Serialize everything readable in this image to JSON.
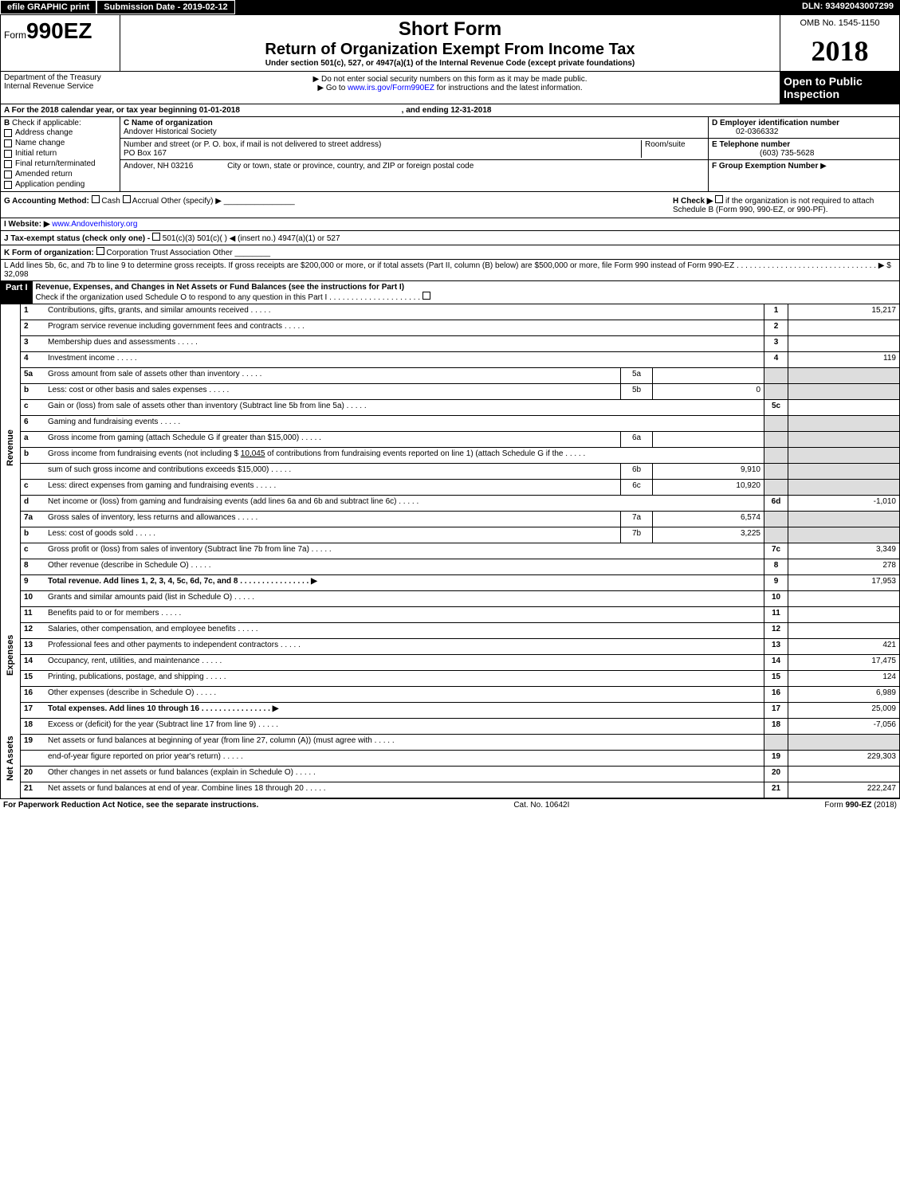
{
  "topbar": {
    "efile": "efile GRAPHIC print",
    "submission": "Submission Date - 2019-02-12",
    "dln": "DLN: 93492043007299"
  },
  "header": {
    "form_prefix": "Form",
    "form_number": "990EZ",
    "omb": "OMB No. 1545-1150",
    "short_form": "Short Form",
    "title": "Return of Organization Exempt From Income Tax",
    "subtitle": "Under section 501(c), 527, or 4947(a)(1) of the Internal Revenue Code (except private foundations)",
    "year": "2018",
    "open_public": "Open to Public Inspection",
    "dept": "Department of the Treasury",
    "irs": "Internal Revenue Service",
    "note1": "Do not enter social security numbers on this form as it may be made public.",
    "note2": "Go to www.irs.gov/Form990EZ for instructions and the latest information."
  },
  "row_a": {
    "text_start": "For the 2018 calendar year, or tax year beginning 01-01-2018",
    "text_end": ", and ending 12-31-2018"
  },
  "section_b": {
    "label": "Check if applicable:",
    "checks": [
      "Address change",
      "Name change",
      "Initial return",
      "Final return/terminated",
      "Amended return",
      "Application pending"
    ],
    "c_label": "C Name of organization",
    "c_value": "Andover Historical Society",
    "addr_label": "Number and street (or P. O. box, if mail is not delivered to street address)",
    "room_label": "Room/suite",
    "addr_value": "PO Box 167",
    "city_label": "City or town, state or province, country, and ZIP or foreign postal code",
    "city_value": "Andover, NH  03216",
    "d_label": "D Employer identification number",
    "d_value": "02-0366332",
    "e_label": "E Telephone number",
    "e_value": "(603) 735-5628",
    "f_label": "F Group Exemption Number",
    "f_arrow": "▶"
  },
  "row_g": {
    "g_label": "G Accounting Method:",
    "g_cash": "Cash",
    "g_accrual": "Accrual",
    "g_other": "Other (specify) ▶",
    "h_label": "H  Check ▶",
    "h_text": "if the organization is not required to attach Schedule B (Form 990, 990-EZ, or 990-PF)."
  },
  "row_i": {
    "label": "I Website: ▶",
    "value": "www.Andoverhistory.org"
  },
  "row_j": {
    "label": "J Tax-exempt status (check only one) -",
    "opts": "501(c)(3)    501(c)(  ) ◀ (insert no.)    4947(a)(1) or    527"
  },
  "row_k": {
    "label": "K Form of organization:",
    "opts": "Corporation    Trust    Association    Other"
  },
  "row_l": {
    "text": "L Add lines 5b, 6c, and 7b to line 9 to determine gross receipts. If gross receipts are $200,000 or more, or if total assets (Part II, column (B) below) are $500,000 or more, file Form 990 instead of Form 990-EZ",
    "amount": "▶ $ 32,098"
  },
  "part1": {
    "label": "Part I",
    "title": "Revenue, Expenses, and Changes in Net Assets or Fund Balances (see the instructions for Part I)",
    "check": "Check if the organization used Schedule O to respond to any question in this Part I"
  },
  "sections": {
    "revenue": "Revenue",
    "expenses": "Expenses",
    "netassets": "Net Assets"
  },
  "lines": [
    {
      "n": "1",
      "d": "Contributions, gifts, grants, and similar amounts received",
      "num": "1",
      "v": "15,217"
    },
    {
      "n": "2",
      "d": "Program service revenue including government fees and contracts",
      "num": "2",
      "v": ""
    },
    {
      "n": "3",
      "d": "Membership dues and assessments",
      "num": "3",
      "v": ""
    },
    {
      "n": "4",
      "d": "Investment income",
      "num": "4",
      "v": "119"
    },
    {
      "n": "5a",
      "d": "Gross amount from sale of assets other than inventory",
      "sub": "5a",
      "sv": ""
    },
    {
      "n": "b",
      "d": "Less: cost or other basis and sales expenses",
      "sub": "5b",
      "sv": "0"
    },
    {
      "n": "c",
      "d": "Gain or (loss) from sale of assets other than inventory (Subtract line 5b from line 5a)",
      "num": "5c",
      "v": ""
    },
    {
      "n": "6",
      "d": "Gaming and fundraising events"
    },
    {
      "n": "a",
      "d": "Gross income from gaming (attach Schedule G if greater than $15,000)",
      "sub": "6a",
      "sv": ""
    },
    {
      "n": "b",
      "d": "Gross income from fundraising events (not including $ ",
      "fill": "10,045",
      "d2": " of contributions from fundraising events reported on line 1) (attach Schedule G if the"
    },
    {
      "n": "",
      "d": "sum of such gross income and contributions exceeds $15,000)",
      "sub": "6b",
      "sv": "9,910"
    },
    {
      "n": "c",
      "d": "Less: direct expenses from gaming and fundraising events",
      "sub": "6c",
      "sv": "10,920"
    },
    {
      "n": "d",
      "d": "Net income or (loss) from gaming and fundraising events (add lines 6a and 6b and subtract line 6c)",
      "num": "6d",
      "v": "-1,010"
    },
    {
      "n": "7a",
      "d": "Gross sales of inventory, less returns and allowances",
      "sub": "7a",
      "sv": "6,574"
    },
    {
      "n": "b",
      "d": "Less: cost of goods sold",
      "sub": "7b",
      "sv": "3,225"
    },
    {
      "n": "c",
      "d": "Gross profit or (loss) from sales of inventory (Subtract line 7b from line 7a)",
      "num": "7c",
      "v": "3,349"
    },
    {
      "n": "8",
      "d": "Other revenue (describe in Schedule O)",
      "num": "8",
      "v": "278"
    },
    {
      "n": "9",
      "d": "Total revenue. Add lines 1, 2, 3, 4, 5c, 6d, 7c, and 8",
      "num": "9",
      "v": "17,953",
      "bold": true,
      "arrow": true
    }
  ],
  "exp_lines": [
    {
      "n": "10",
      "d": "Grants and similar amounts paid (list in Schedule O)",
      "num": "10",
      "v": ""
    },
    {
      "n": "11",
      "d": "Benefits paid to or for members",
      "num": "11",
      "v": ""
    },
    {
      "n": "12",
      "d": "Salaries, other compensation, and employee benefits",
      "num": "12",
      "v": ""
    },
    {
      "n": "13",
      "d": "Professional fees and other payments to independent contractors",
      "num": "13",
      "v": "421"
    },
    {
      "n": "14",
      "d": "Occupancy, rent, utilities, and maintenance",
      "num": "14",
      "v": "17,475"
    },
    {
      "n": "15",
      "d": "Printing, publications, postage, and shipping",
      "num": "15",
      "v": "124"
    },
    {
      "n": "16",
      "d": "Other expenses (describe in Schedule O)",
      "num": "16",
      "v": "6,989"
    },
    {
      "n": "17",
      "d": "Total expenses. Add lines 10 through 16",
      "num": "17",
      "v": "25,009",
      "bold": true,
      "arrow": true
    }
  ],
  "na_lines": [
    {
      "n": "18",
      "d": "Excess or (deficit) for the year (Subtract line 17 from line 9)",
      "num": "18",
      "v": "-7,056"
    },
    {
      "n": "19",
      "d": "Net assets or fund balances at beginning of year (from line 27, column (A)) (must agree with"
    },
    {
      "n": "",
      "d": "end-of-year figure reported on prior year's return)",
      "num": "19",
      "v": "229,303"
    },
    {
      "n": "20",
      "d": "Other changes in net assets or fund balances (explain in Schedule O)",
      "num": "20",
      "v": ""
    },
    {
      "n": "21",
      "d": "Net assets or fund balances at end of year. Combine lines 18 through 20",
      "num": "21",
      "v": "222,247"
    }
  ],
  "footer": {
    "left": "For Paperwork Reduction Act Notice, see the separate instructions.",
    "center": "Cat. No. 10642I",
    "right": "Form 990-EZ (2018)"
  }
}
